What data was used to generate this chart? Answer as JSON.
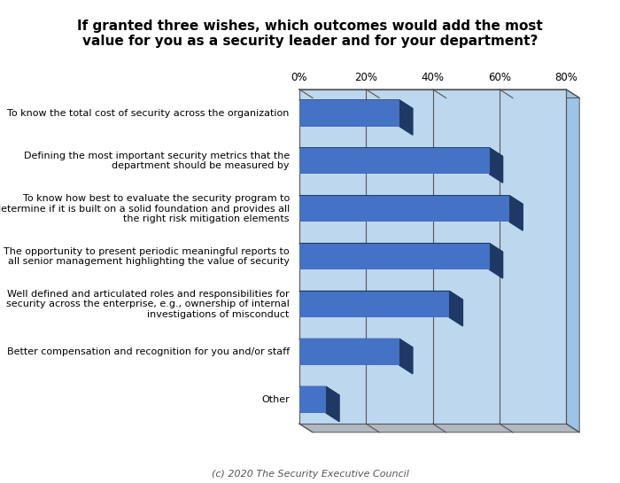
{
  "title": "If granted three wishes, which outcomes would add the most\nvalue for you as a security leader and for your department?",
  "categories": [
    "To know the total cost of security across the organization",
    "Defining the most important security metrics that the\ndepartment should be measured by",
    "To know how best to evaluate the security program to\ndetermine if it is built on a solid foundation and provides all\nthe right risk mitigation elements",
    "The opportunity to present periodic meaningful reports to\nall senior management highlighting the value of security",
    "Well defined and articulated roles and responsibilities for\nsecurity across the enterprise, e.g., ownership of internal\ninvestigations of misconduct",
    "Better compensation and recognition for you and/or staff",
    "Other"
  ],
  "values": [
    30,
    57,
    63,
    57,
    45,
    30,
    8
  ],
  "bar_color": "#4472C4",
  "bar_dark_color": "#1F3864",
  "bg_color": "#BDD7EE",
  "bg_right_color": "#9DC3E6",
  "bg_bottom_color": "#B0B8C0",
  "plot_bg": "#ffffff",
  "grid_line_color": "#555555",
  "text_color": "#000000",
  "footnote": "(c) 2020 The Security Executive Council",
  "xlim": [
    0,
    80
  ],
  "xticks": [
    0,
    20,
    40,
    60,
    80
  ],
  "xticklabels": [
    "0%",
    "20%",
    "40%",
    "60%",
    "80%"
  ]
}
